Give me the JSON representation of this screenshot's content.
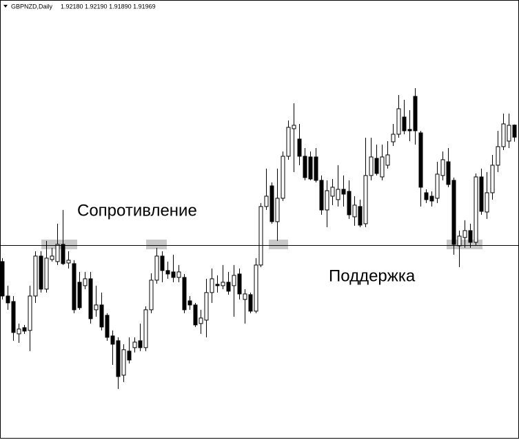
{
  "chart_data": {
    "type": "candlestick",
    "symbol": "GBPNZD,Daily",
    "ohlc": "1.92180 1.92190 1.91890 1.91969",
    "annotations": [
      "Сопротивление",
      "Поддержка"
    ],
    "level": 1.9009,
    "ylim": [
      1.8669,
      1.9436
    ],
    "up_color": "#ffffff",
    "down_color": "#000000",
    "open": [
      1.898,
      1.892,
      1.89104,
      1.8854,
      1.88648,
      1.886,
      1.892,
      1.89896,
      1.8932,
      1.89836,
      1.898,
      1.901,
      1.89776,
      1.89764,
      1.8944,
      1.8938,
      1.895,
      1.8896,
      1.89044,
      1.88864,
      1.88504,
      1.8842,
      1.8782,
      1.8824,
      1.883,
      1.8842,
      1.883,
      1.8896,
      1.89476,
      1.89896,
      1.89644,
      1.8962,
      1.89524,
      1.89524,
      1.89116,
      1.89044,
      1.8872,
      1.8878,
      1.8926,
      1.89404,
      1.8938,
      1.8944,
      1.8938,
      1.89584,
      1.8914,
      1.89224,
      1.88936,
      1.8974,
      1.9076,
      1.9112,
      1.90496,
      1.90904,
      1.91636,
      1.92116,
      1.91936,
      1.91636,
      1.91624,
      1.91624,
      1.91216,
      1.907,
      1.9094,
      1.9088,
      1.9106,
      1.91024,
      1.9058,
      1.9076,
      1.9046,
      1.913,
      1.916,
      1.91276,
      1.9148,
      1.91888,
      1.9202,
      1.9232,
      1.92104,
      1.9268,
      1.92044,
      1.91,
      1.9094,
      1.90904,
      1.913,
      1.9154,
      1.91216,
      1.90076,
      1.9022,
      1.9034,
      1.90136,
      1.91276,
      1.90664,
      1.91,
      1.9148,
      1.91804,
      1.919,
      1.9218
    ],
    "high": [
      1.8986,
      1.8938,
      1.892,
      1.8872,
      1.88696,
      1.8938,
      1.8998,
      1.8998,
      1.9016,
      1.9004,
      1.9046,
      1.907,
      1.8998,
      1.89824,
      1.8962,
      1.8962,
      1.8962,
      1.8938,
      1.8926,
      1.889,
      1.886,
      1.8848,
      1.8836,
      1.8848,
      1.8848,
      1.8872,
      1.8902,
      1.89596,
      1.9004,
      1.8998,
      1.898,
      1.8992,
      1.8974,
      1.89584,
      1.892,
      1.8908,
      1.8896,
      1.895,
      1.8968,
      1.8956,
      1.8974,
      1.8962,
      1.8974,
      1.8968,
      1.8932,
      1.8926,
      1.8986,
      1.9082,
      1.9142,
      1.9118,
      1.9142,
      1.9172,
      1.9226,
      1.9256,
      1.922,
      1.9178,
      1.9172,
      1.9178,
      1.913,
      1.91216,
      1.9124,
      1.9148,
      1.913,
      1.91216,
      1.9094,
      1.9088,
      1.9196,
      1.9196,
      1.9184,
      1.9184,
      1.919,
      1.922,
      1.92704,
      1.9262,
      1.9244,
      1.92824,
      1.9208,
      1.9106,
      1.91024,
      1.9154,
      1.9172,
      1.9178,
      1.91264,
      1.9034,
      1.9052,
      1.9046,
      1.91336,
      1.9142,
      1.9136,
      1.9166,
      1.9208,
      1.9238,
      1.9238,
      1.9219
    ],
    "low": [
      1.8914,
      1.8896,
      1.8842,
      1.88384,
      1.8854,
      1.8824,
      1.8908,
      1.8926,
      1.8926,
      1.898,
      1.8974,
      1.8974,
      1.8968,
      1.889,
      1.8896,
      1.8932,
      1.8872,
      1.8884,
      1.886,
      1.8842,
      1.88,
      1.8758,
      1.877,
      1.88024,
      1.88216,
      1.8824,
      1.8824,
      1.889,
      1.89416,
      1.8944,
      1.895,
      1.8944,
      1.8944,
      1.889,
      1.8896,
      1.8866,
      1.8854,
      1.8848,
      1.8908,
      1.8926,
      1.8932,
      1.89224,
      1.8884,
      1.8914,
      1.8872,
      1.889,
      1.889,
      1.89704,
      1.907,
      1.9046,
      1.9016,
      1.90856,
      1.91576,
      1.9136,
      1.9148,
      1.91216,
      1.91216,
      1.9118,
      1.90616,
      1.904,
      1.90784,
      1.9076,
      1.9076,
      1.90544,
      1.90424,
      1.904,
      1.904,
      1.91216,
      1.913,
      1.91216,
      1.9142,
      1.91816,
      1.9196,
      1.9202,
      1.919,
      1.9184,
      1.9076,
      1.9082,
      1.9076,
      1.9082,
      1.91216,
      1.91096,
      1.8992,
      1.89704,
      1.9004,
      1.9004,
      1.90088,
      1.90616,
      1.90544,
      1.9088,
      1.9136,
      1.91744,
      1.9178,
      1.9189
    ],
    "close": [
      1.892,
      1.8908,
      1.88564,
      1.88624,
      1.88588,
      1.892,
      1.89896,
      1.8932,
      1.8986,
      1.89896,
      1.901,
      1.89764,
      1.89824,
      1.8896,
      1.88996,
      1.895,
      1.88804,
      1.89044,
      1.8866,
      1.8848,
      1.8836,
      1.87796,
      1.88264,
      1.88084,
      1.88396,
      1.883,
      1.8896,
      1.89476,
      1.89896,
      1.89644,
      1.89584,
      1.89524,
      1.8962,
      1.8896,
      1.89044,
      1.88696,
      1.88816,
      1.8926,
      1.895,
      1.8938,
      1.8944,
      1.89284,
      1.8956,
      1.89236,
      1.89236,
      1.88936,
      1.8974,
      1.9076,
      1.9094,
      1.90496,
      1.90904,
      1.91636,
      1.9214,
      1.92176,
      1.91636,
      1.91264,
      1.9124,
      1.91216,
      1.907,
      1.91036,
      1.91096,
      1.9106,
      1.90976,
      1.90616,
      1.90784,
      1.90436,
      1.913,
      1.91624,
      1.91336,
      1.91624,
      1.9166,
      1.9202,
      1.92464,
      1.9208,
      1.9208,
      1.9208,
      1.91096,
      1.9088,
      1.90856,
      1.91324,
      1.91576,
      1.91144,
      1.901,
      1.90244,
      1.9034,
      1.90136,
      1.91276,
      1.90676,
      1.91,
      1.9148,
      1.91804,
      1.922,
      1.92176,
      1.91969
    ]
  }
}
